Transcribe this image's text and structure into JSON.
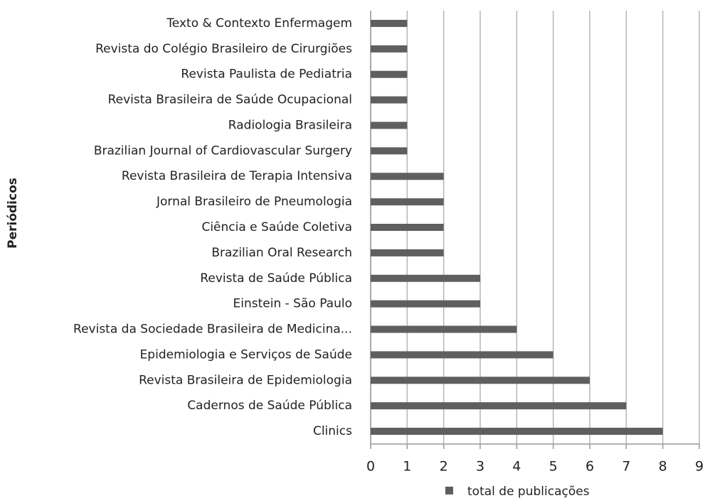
{
  "chart_data": {
    "type": "hbar",
    "ylabel": "Periódicos",
    "categories": [
      "Texto & Contexto Enfermagem",
      "Revista do Colégio Brasileiro de Cirurgiões",
      "Revista Paulista de Pediatria",
      "Revista Brasileira de Saúde Ocupacional",
      "Radiologia Brasileira",
      "Brazilian Journal of Cardiovascular Surgery",
      "Revista Brasileira de Terapia Intensiva",
      "Jornal Brasileiro de Pneumologia",
      "Ciência e Saúde Coletiva",
      "Brazilian Oral Research",
      "Revista de Saúde Pública",
      "Einstein - São Paulo",
      "Revista da Sociedade Brasileira de Medicina...",
      "Epidemiologia e Serviços de Saúde",
      "Revista Brasileira de Epidemiologia",
      "Cadernos de Saúde Pública",
      "Clinics"
    ],
    "series": [
      {
        "name": "total de publicações",
        "color": "#5f5f5f",
        "values": [
          1,
          1,
          1,
          1,
          1,
          1,
          2,
          2,
          2,
          2,
          3,
          3,
          4,
          5,
          6,
          7,
          8
        ]
      }
    ],
    "xlim": [
      0,
      9
    ],
    "xticks": [
      0,
      1,
      2,
      3,
      4,
      5,
      6,
      7,
      8,
      9
    ],
    "grid": true,
    "legend": "bottom"
  }
}
